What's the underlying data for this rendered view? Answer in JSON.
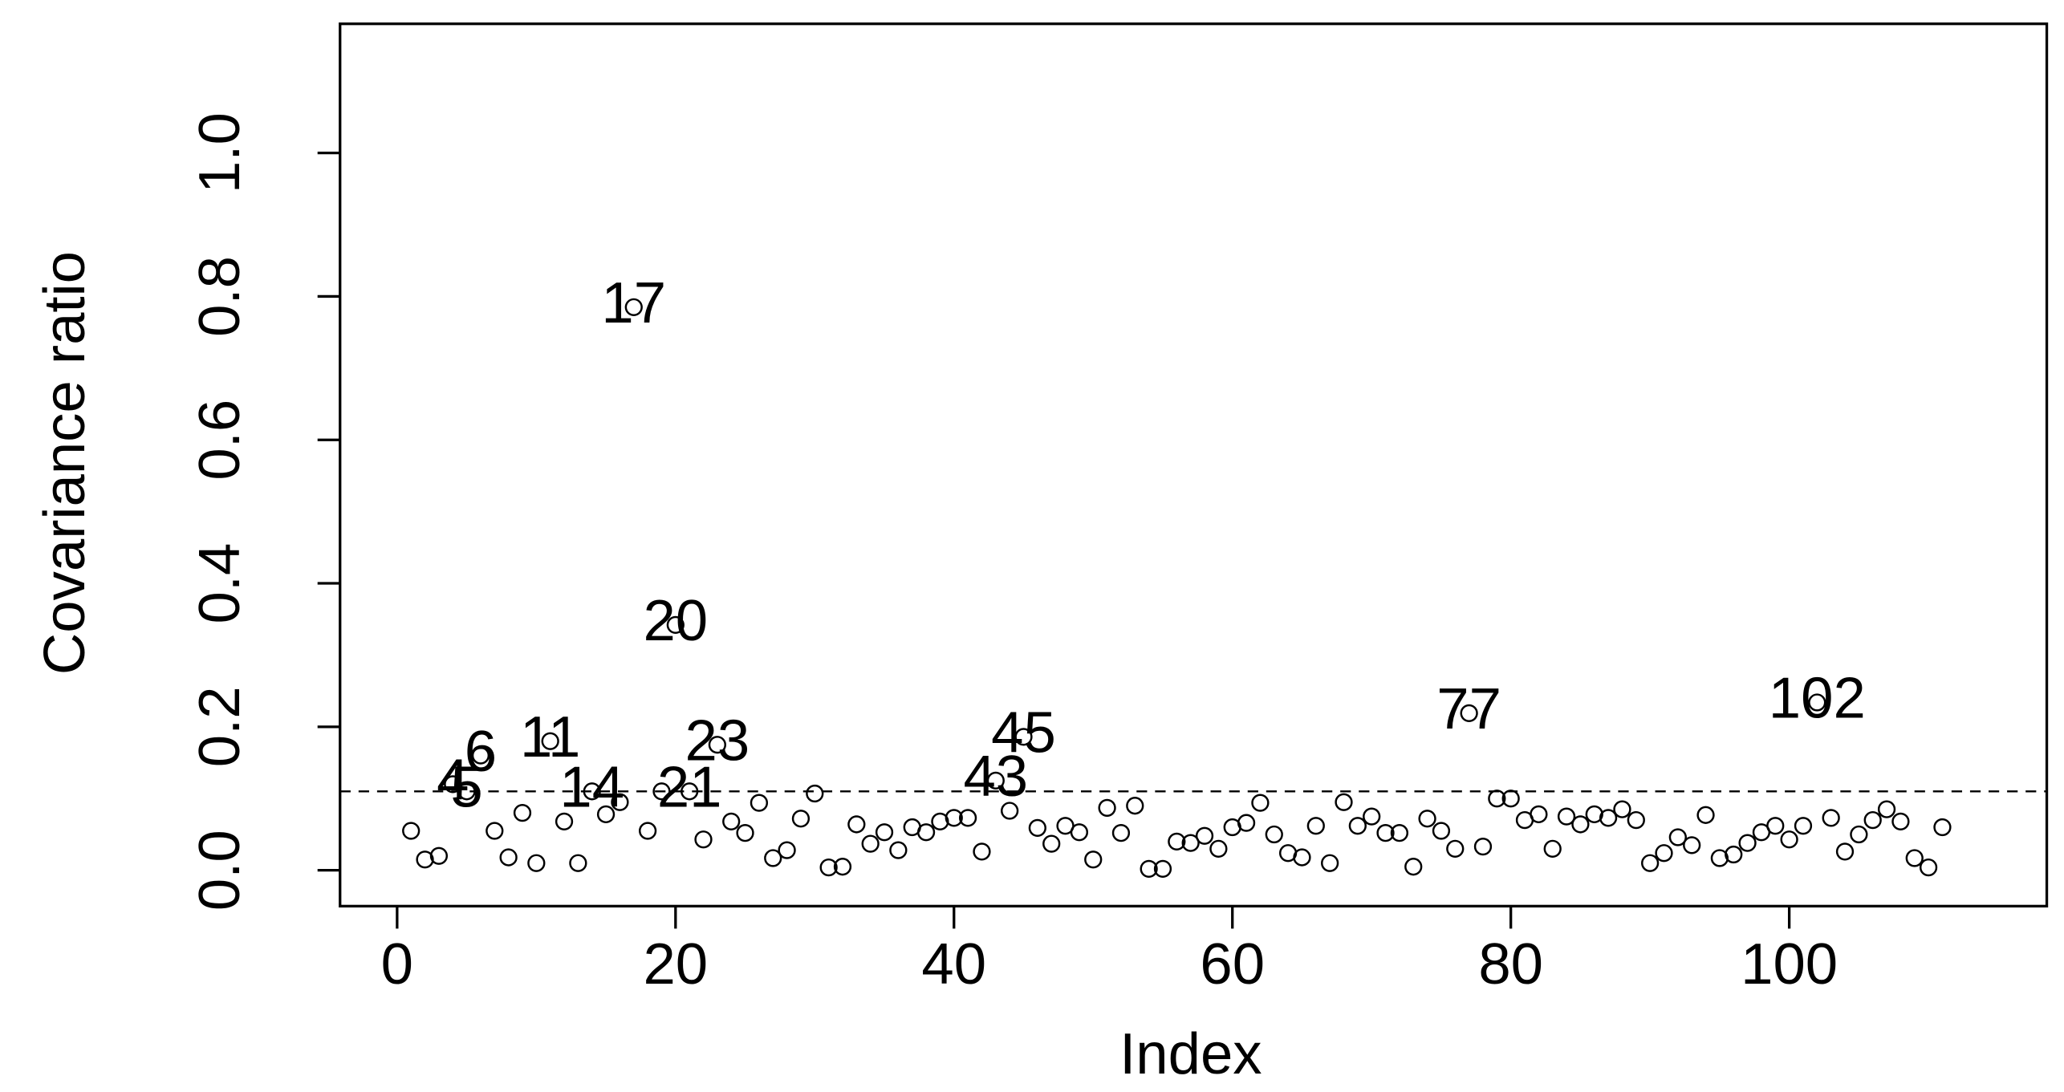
{
  "chart_data": {
    "type": "scatter",
    "x_label": "Index",
    "y_label": "Covariance ratio",
    "x": [
      1,
      2,
      3,
      4,
      5,
      6,
      7,
      8,
      9,
      10,
      11,
      12,
      13,
      14,
      15,
      16,
      17,
      18,
      19,
      20,
      21,
      22,
      23,
      24,
      25,
      26,
      27,
      28,
      29,
      30,
      31,
      32,
      33,
      34,
      35,
      36,
      37,
      38,
      39,
      40,
      41,
      42,
      43,
      44,
      45,
      46,
      47,
      48,
      49,
      50,
      51,
      52,
      53,
      54,
      55,
      56,
      57,
      58,
      59,
      60,
      61,
      62,
      63,
      64,
      65,
      66,
      67,
      68,
      69,
      70,
      71,
      72,
      73,
      74,
      75,
      76,
      77,
      78,
      79,
      80,
      81,
      82,
      83,
      84,
      85,
      86,
      87,
      88,
      89,
      90,
      91,
      92,
      93,
      94,
      95,
      96,
      97,
      98,
      99,
      100,
      101,
      102,
      103,
      104,
      105,
      106,
      107,
      108,
      109,
      110,
      111
    ],
    "values": [
      0.055,
      0.015,
      0.02,
      0.12,
      0.11,
      0.16,
      0.055,
      0.018,
      0.08,
      0.01,
      0.18,
      0.068,
      0.01,
      0.11,
      0.078,
      0.095,
      0.785,
      0.055,
      0.11,
      0.342,
      0.11,
      0.043,
      0.175,
      0.068,
      0.052,
      0.094,
      0.017,
      0.028,
      0.072,
      0.107,
      0.004,
      0.005,
      0.064,
      0.037,
      0.053,
      0.028,
      0.06,
      0.053,
      0.068,
      0.073,
      0.073,
      0.026,
      0.125,
      0.083,
      0.186,
      0.059,
      0.037,
      0.062,
      0.053,
      0.015,
      0.087,
      0.052,
      0.09,
      0.002,
      0.002,
      0.04,
      0.038,
      0.048,
      0.03,
      0.06,
      0.066,
      0.094,
      0.05,
      0.024,
      0.018,
      0.062,
      0.01,
      0.095,
      0.062,
      0.075,
      0.052,
      0.052,
      0.005,
      0.072,
      0.055,
      0.03,
      0.219,
      0.033,
      0.1,
      0.1,
      0.07,
      0.078,
      0.03,
      0.075,
      0.064,
      0.078,
      0.073,
      0.085,
      0.07,
      0.01,
      0.024,
      0.046,
      0.035,
      0.077,
      0.017,
      0.022,
      0.038,
      0.053,
      0.062,
      0.043,
      0.062,
      0.234,
      0.073,
      0.026,
      0.05,
      0.07,
      0.085,
      0.068,
      0.017,
      0.004,
      0.06
    ],
    "labeled_points": [
      4,
      5,
      6,
      11,
      14,
      17,
      20,
      21,
      23,
      43,
      45,
      77,
      102
    ],
    "hline": 0.11,
    "xlim": [
      -4.1,
      118.5
    ],
    "xticks": [
      0,
      20,
      40,
      60,
      80,
      100
    ],
    "ylim": [
      -0.05,
      1.18
    ],
    "yticks": [
      {
        "value": 0,
        "label": "0.0"
      },
      {
        "value": 0.2,
        "label": "0.2"
      },
      {
        "value": 0.4,
        "label": "0.4"
      },
      {
        "value": 0.6,
        "label": "0.6"
      },
      {
        "value": 0.8,
        "label": "0.8"
      },
      {
        "value": 1,
        "label": "1.0"
      }
    ],
    "color": "#000000"
  }
}
